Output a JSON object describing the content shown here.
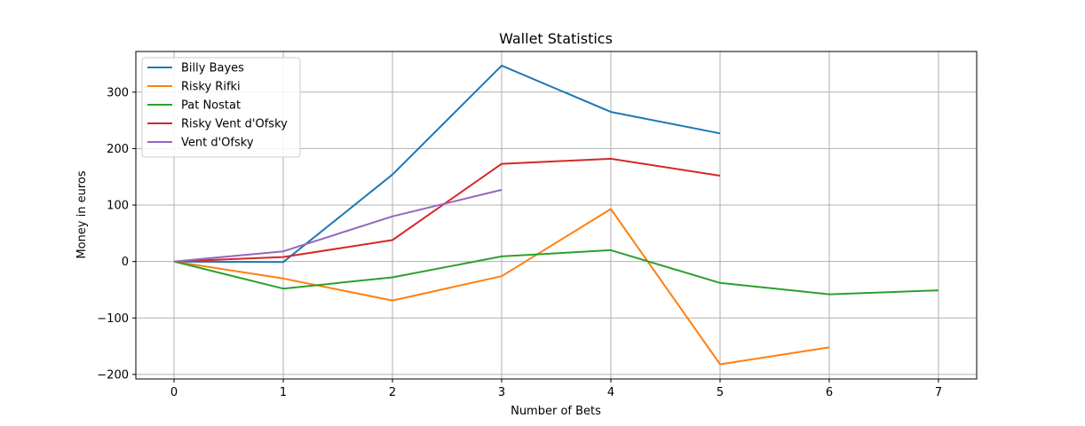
{
  "chart_data": {
    "type": "line",
    "title": "Wallet Statistics",
    "xlabel": "Number of Bets",
    "ylabel": "Money in euros",
    "xlim": [
      -0.35,
      7.35
    ],
    "ylim": [
      -208,
      372
    ],
    "xticks": [
      0,
      1,
      2,
      3,
      4,
      5,
      6,
      7
    ],
    "yticks": [
      -200,
      -100,
      0,
      100,
      200,
      300
    ],
    "grid": true,
    "legend": "upper-left",
    "series": [
      {
        "name": "Billy Bayes",
        "color": "#1f77b4",
        "x": [
          0,
          1,
          2,
          3,
          4,
          5
        ],
        "y": [
          0,
          -1,
          154,
          347,
          265,
          227
        ]
      },
      {
        "name": "Risky Rifki",
        "color": "#ff7f0e",
        "x": [
          0,
          1,
          2,
          3,
          4,
          5,
          6
        ],
        "y": [
          0,
          -30,
          -69,
          -26,
          93,
          -182,
          -152
        ]
      },
      {
        "name": "Pat Nostat",
        "color": "#2ca02c",
        "x": [
          0,
          1,
          2,
          3,
          4,
          5,
          6,
          7
        ],
        "y": [
          0,
          -48,
          -28,
          9,
          20,
          -38,
          -58,
          -51
        ]
      },
      {
        "name": "Risky Vent d'Ofsky",
        "color": "#d62728",
        "x": [
          0,
          1,
          2,
          3,
          4,
          5
        ],
        "y": [
          0,
          8,
          38,
          173,
          182,
          152
        ]
      },
      {
        "name": "Vent d'Ofsky",
        "color": "#9467bd",
        "x": [
          0,
          1,
          2,
          3
        ],
        "y": [
          0,
          18,
          80,
          127
        ]
      }
    ]
  }
}
